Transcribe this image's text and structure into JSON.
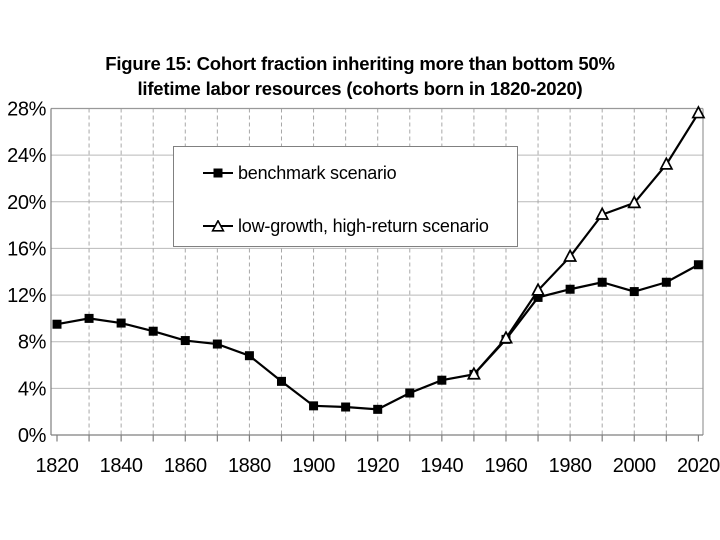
{
  "title": {
    "line1": "Figure 15: Cohort fraction inheriting more than bottom 50%",
    "line2": "lifetime labor resources (cohorts born in 1820-2020)"
  },
  "chart_data": {
    "type": "line",
    "x": [
      1820,
      1830,
      1840,
      1850,
      1860,
      1870,
      1880,
      1890,
      1900,
      1910,
      1920,
      1930,
      1940,
      1950,
      1960,
      1970,
      1980,
      1990,
      2000,
      2010,
      2020
    ],
    "series": [
      {
        "name": "benchmark scenario",
        "marker": "filled-square",
        "color": "#000000",
        "values": [
          9.5,
          10.0,
          9.6,
          8.9,
          8.1,
          7.8,
          6.8,
          4.6,
          2.5,
          2.4,
          2.2,
          3.6,
          4.7,
          5.2,
          8.2,
          11.8,
          12.5,
          13.1,
          12.3,
          13.1,
          14.6
        ]
      },
      {
        "name": "low-growth, high-return scenario",
        "marker": "open-triangle",
        "color": "#000000",
        "values": [
          null,
          null,
          null,
          null,
          null,
          null,
          null,
          null,
          null,
          null,
          null,
          null,
          null,
          5.2,
          8.3,
          12.4,
          15.3,
          18.9,
          19.9,
          23.2,
          27.6
        ]
      }
    ],
    "ylim": [
      0,
      28
    ],
    "ytick_step": 4,
    "ytick_suffix": "%",
    "xticks_labeled": [
      1820,
      1840,
      1860,
      1880,
      1900,
      1920,
      1940,
      1960,
      1980,
      2000,
      2020
    ],
    "grid": {
      "horizontal": "solid",
      "vertical": "dashed-every-decade"
    },
    "legend_position": "upper-left-inside"
  },
  "legend": {
    "items": [
      {
        "label": "benchmark scenario",
        "icon": "filled-square-icon"
      },
      {
        "label": "low-growth, high-return scenario",
        "icon": "open-triangle-icon"
      }
    ]
  },
  "colors": {
    "background": "#ffffff",
    "text": "#000000",
    "grid_h": "#b9b9b9",
    "grid_v": "#a8a8a8",
    "frame_dark": "#7f7f7f",
    "frame_light": "#999999",
    "series": "#000000",
    "legend_border": "#808080"
  }
}
